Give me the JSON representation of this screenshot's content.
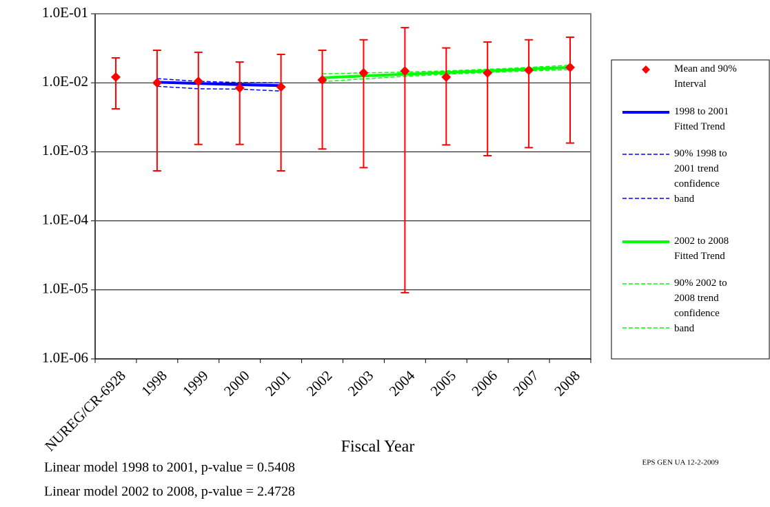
{
  "chart_data": {
    "type": "line",
    "x_label": "Fiscal Year",
    "categories": [
      "NUREG/CR-6928",
      "1998",
      "1999",
      "2000",
      "2001",
      "2002",
      "2003",
      "2004",
      "2005",
      "2006",
      "2007",
      "2008"
    ],
    "log_scale": true,
    "grid": true,
    "ylim": [
      1e-06,
      0.1
    ],
    "yticks": [
      {
        "value": 1e-06,
        "label": "1.0E-06"
      },
      {
        "value": 1e-05,
        "label": "1.0E-05"
      },
      {
        "value": 0.0001,
        "label": "1.0E-04"
      },
      {
        "value": 0.001,
        "label": "1.0E-03"
      },
      {
        "value": 0.01,
        "label": "1.0E-02"
      },
      {
        "value": 0.1,
        "label": "1.0E-01"
      }
    ],
    "series": [
      {
        "name": "Mean and 90% Interval",
        "color": "#ff0000",
        "style": "errorbar",
        "values": [
          0.0121,
          0.01,
          0.0105,
          0.0084,
          0.0087,
          0.011,
          0.0139,
          0.0148,
          0.0121,
          0.0139,
          0.0152,
          0.0167
        ],
        "low": [
          0.0042,
          0.00053,
          0.00128,
          0.00128,
          0.00053,
          0.0011,
          0.00059,
          9.1e-06,
          0.00126,
          0.00088,
          0.00115,
          0.00134
        ],
        "high": [
          0.023,
          0.0296,
          0.0277,
          0.02,
          0.0258,
          0.0296,
          0.042,
          0.063,
          0.032,
          0.039,
          0.042,
          0.0458
        ]
      },
      {
        "name": "1998 to 2001 Fitted Trend",
        "color": "#0000ff",
        "style": "solid",
        "values": [
          null,
          0.0102,
          0.0098,
          0.0094,
          0.0091,
          null,
          null,
          null,
          null,
          null,
          null,
          null
        ]
      },
      {
        "name": "90% 1998 to 2001 trend confidence band",
        "color": "#0000ff",
        "style": "dashed",
        "values": [
          null,
          0.0115,
          0.0105,
          0.0101,
          0.01,
          null,
          null,
          null,
          null,
          null,
          null,
          null
        ]
      },
      {
        "color": "#0000ff",
        "style": "dashed",
        "values": [
          null,
          0.0089,
          0.0082,
          0.0081,
          0.0076,
          null,
          null,
          null,
          null,
          null,
          null,
          null
        ]
      },
      {
        "name": "2002 to 2008 Fitted Trend",
        "color": "#00ff00",
        "style": "solid",
        "values": [
          null,
          null,
          null,
          null,
          null,
          0.0118,
          0.0126,
          0.0133,
          0.0141,
          0.0149,
          0.0158,
          0.0167
        ]
      },
      {
        "name": "90% 2002 to 2008 trend confidence band",
        "color": "#00ff00",
        "style": "dashed",
        "values": [
          null,
          null,
          null,
          null,
          null,
          0.0135,
          0.0139,
          0.0143,
          0.0149,
          0.0157,
          0.0167,
          0.018
        ]
      },
      {
        "color": "#00ff00",
        "style": "dashed",
        "values": [
          null,
          null,
          null,
          null,
          null,
          0.0104,
          0.0114,
          0.0124,
          0.0133,
          0.0141,
          0.0149,
          0.0155
        ]
      }
    ],
    "annotations": [
      "Linear model 1998 to 2001, p-value = 0.5408",
      "Linear model 2002 to 2008, p-value = 2.4728",
      "EPS GEN UA 12-2-2009"
    ]
  }
}
